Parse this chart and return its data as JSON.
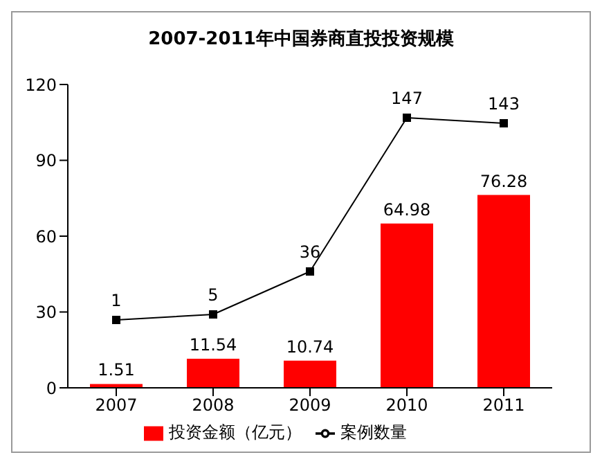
{
  "chart_data": {
    "type": "bar",
    "title": "2007-2011年中国券商直投投资规模",
    "categories": [
      "2007",
      "2008",
      "2009",
      "2010",
      "2011"
    ],
    "series": [
      {
        "name": "投资金额（亿元）",
        "color": "#ff0000",
        "values": [
          1.51,
          11.54,
          10.74,
          64.98,
          76.28
        ]
      },
      {
        "name": "案例数量",
        "type": "line",
        "color": "#000000",
        "axis": "y2",
        "marker": "square",
        "values": [
          1,
          5,
          36,
          147,
          143
        ]
      }
    ],
    "ylim": [
      0,
      120
    ],
    "yticks": [
      0,
      30,
      60,
      90,
      120
    ],
    "y2lim": [
      -48,
      171
    ],
    "data_labels": true,
    "legend": "bottom"
  }
}
